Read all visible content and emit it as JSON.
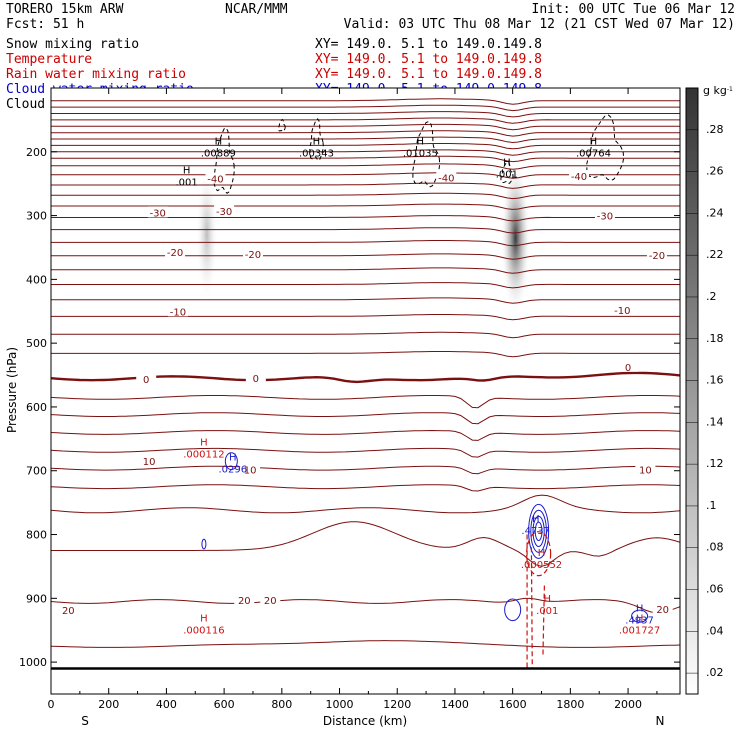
{
  "header": {
    "model": "TORERO  15km ARW",
    "center": "NCAR/MMM",
    "init": "Init: 00 UTC Tue 06 Mar 12",
    "fcst": "Fcst:   51 h",
    "valid": "Valid: 03 UTC Thu 08 Mar 12 (21 CST Wed 07 Mar 12)"
  },
  "legend": [
    {
      "name": "Snow mixing ratio",
      "xy": "XY= 149.0.   5.1 to 149.0.149.8",
      "color": "#000000"
    },
    {
      "name": "Temperature",
      "xy": "XY= 149.0.   5.1 to 149.0.149.8",
      "color": "#cc0000"
    },
    {
      "name": "Rain water mixing ratio",
      "xy": "XY= 149.0.   5.1 to 149.0.149.8",
      "color": "#cc0000"
    },
    {
      "name": "Cloud water mixing ratio",
      "xy": "XY= 149.0.   5.1 to 149.0.149.8",
      "color": "#0000cc"
    },
    {
      "name": "Cloud ice mixing ratio",
      "xy": "XY= 149.0.   5.1 to 149.0.149.8",
      "color": "#000000"
    }
  ],
  "chart_data": {
    "type": "cross-section",
    "xlabel": "Distance (km)",
    "ylabel": "Pressure (hPa)",
    "xlim": [
      0,
      2180
    ],
    "ylim": [
      1050,
      100
    ],
    "x_ticks": [
      0,
      200,
      400,
      600,
      800,
      1000,
      1200,
      1400,
      1600,
      1800,
      2000
    ],
    "y_ticks": [
      200,
      300,
      400,
      500,
      600,
      700,
      800,
      900,
      1000
    ],
    "endpoint_labels": {
      "left": "S",
      "right": "N"
    },
    "colorbar": {
      "unit": "g kg",
      "unit_exp": "-1",
      "ticks": [
        0.02,
        0.04,
        0.06,
        0.08,
        0.1,
        0.12,
        0.14,
        0.16,
        0.18,
        0.2,
        0.22,
        0.24,
        0.26,
        0.28
      ],
      "tick_labels": [
        ".02",
        ".04",
        ".06",
        ".08",
        ".1",
        ".12",
        ".14",
        ".16",
        ".18",
        ".2",
        ".22",
        ".24",
        ".26",
        ".28"
      ],
      "min": 0.01,
      "max": 0.3
    },
    "ground_pressure": 1010,
    "temperature_isotherm_labels": [
      {
        "text": "-40",
        "x": 570,
        "p": 242
      },
      {
        "text": "-40",
        "x": 1370,
        "p": 240
      },
      {
        "text": "-40",
        "x": 1830,
        "p": 238
      },
      {
        "text": "-30",
        "x": 370,
        "p": 295
      },
      {
        "text": "-30",
        "x": 600,
        "p": 293
      },
      {
        "text": "-30",
        "x": 1920,
        "p": 300
      },
      {
        "text": "-20",
        "x": 430,
        "p": 357
      },
      {
        "text": "-20",
        "x": 700,
        "p": 360
      },
      {
        "text": "-20",
        "x": 2100,
        "p": 362
      },
      {
        "text": "-10",
        "x": 440,
        "p": 450
      },
      {
        "text": "-10",
        "x": 1980,
        "p": 448
      },
      {
        "text": "0",
        "x": 330,
        "p": 556
      },
      {
        "text": "0",
        "x": 710,
        "p": 555
      },
      {
        "text": "0",
        "x": 2000,
        "p": 537
      },
      {
        "text": "10",
        "x": 340,
        "p": 685
      },
      {
        "text": "10",
        "x": 690,
        "p": 698
      },
      {
        "text": "10",
        "x": 2060,
        "p": 698
      },
      {
        "text": "20",
        "x": 60,
        "p": 918
      },
      {
        "text": "20",
        "x": 670,
        "p": 903
      },
      {
        "text": "20",
        "x": 760,
        "p": 903
      },
      {
        "text": "20",
        "x": 2120,
        "p": 917
      }
    ],
    "highs": [
      {
        "field": "Cloud ice mixing ratio",
        "value": ".00889",
        "x": 580,
        "p": 195
      },
      {
        "field": "Cloud ice mixing ratio",
        "value": ".00343",
        "x": 920,
        "p": 195
      },
      {
        "field": "Cloud ice mixing ratio",
        "value": ".01035",
        "x": 1280,
        "p": 195
      },
      {
        "field": "Cloud ice mixing ratio",
        "value": ".001",
        "x": 1580,
        "p": 228
      },
      {
        "field": "Cloud ice mixing ratio",
        "value": ".00764",
        "x": 1880,
        "p": 195
      },
      {
        "field": "Cloud ice mixing ratio",
        "value": ".001",
        "x": 470,
        "p": 240
      },
      {
        "field": "Rain water mixing ratio",
        "value": ".000112",
        "x": 530,
        "p": 667
      },
      {
        "field": "Cloud water mixing ratio",
        "value": ".0296",
        "x": 630,
        "p": 690
      },
      {
        "field": "Cloud water mixing ratio",
        "value": ".4737",
        "x": 1680,
        "p": 787
      },
      {
        "field": "Rain water mixing ratio",
        "value": ".000552",
        "x": 1700,
        "p": 840
      },
      {
        "field": "Rain water mixing ratio",
        "value": ".001",
        "x": 1720,
        "p": 912
      },
      {
        "field": "Rain water mixing ratio",
        "value": ".000116",
        "x": 530,
        "p": 943
      },
      {
        "field": "Cloud water mixing ratio",
        "value": ".4937",
        "x": 2040,
        "p": 927
      },
      {
        "field": "Rain water mixing ratio",
        "value": ".001727",
        "x": 2040,
        "p": 943
      }
    ],
    "snow_plumes": [
      {
        "x": 540,
        "p_top": 230,
        "p_bot": 450,
        "peak": 0.1
      },
      {
        "x": 1610,
        "p_top": 225,
        "p_bot": 470,
        "peak": 0.3
      },
      {
        "x": 1300,
        "p_top": 220,
        "p_bot": 270,
        "peak": 0.02
      }
    ]
  }
}
